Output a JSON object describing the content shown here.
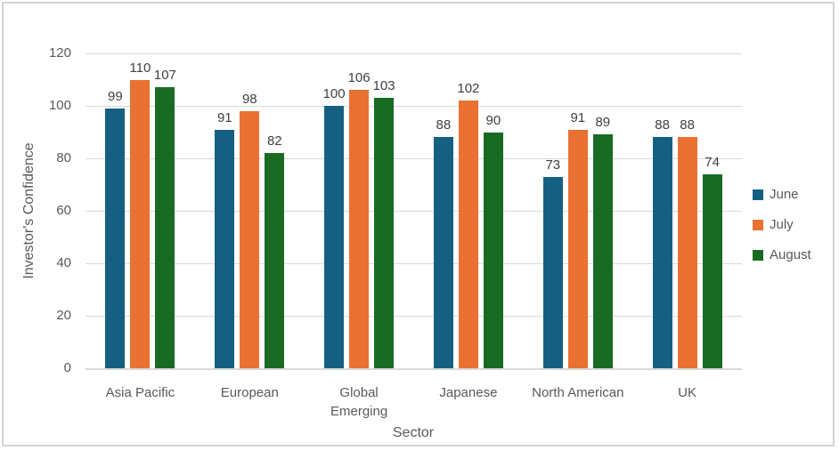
{
  "chart_data": {
    "type": "bar",
    "title": "",
    "xlabel": "Sector",
    "ylabel": "Investor's Confidence",
    "categories": [
      "Asia Pacific",
      "European",
      "Global Emerging",
      "Japanese",
      "North American",
      "UK"
    ],
    "series": [
      {
        "name": "June",
        "color": "#156082",
        "values": [
          99,
          91,
          100,
          88,
          73,
          88
        ]
      },
      {
        "name": "July",
        "color": "#E97132",
        "values": [
          110,
          98,
          106,
          102,
          91,
          88
        ]
      },
      {
        "name": "August",
        "color": "#196B24",
        "values": [
          107,
          82,
          103,
          90,
          89,
          74
        ]
      }
    ],
    "ylim": [
      0,
      120
    ],
    "y_ticks": [
      0,
      20,
      40,
      60,
      80,
      100,
      120
    ],
    "grid": true,
    "show_data_labels": true,
    "legend_position": "right",
    "grid_color": "#D9D9D9",
    "axis_text_color": "#595959",
    "data_label_color": "#404040"
  }
}
